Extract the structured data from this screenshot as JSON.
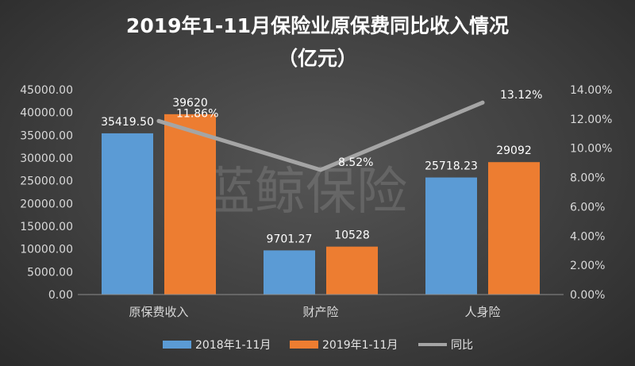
{
  "chart_data": {
    "type": "bar",
    "title_line1": "2019年1-11月保险业原保费同比收入情况",
    "title_line2": "（亿元）",
    "watermark": "蓝鲸保险",
    "categories": [
      "原保费收入",
      "财产险",
      "人身险"
    ],
    "series": [
      {
        "name": "2018年1-11月",
        "type": "bar",
        "color": "#5b9bd5",
        "values": [
          35419.5,
          9701.27,
          25718.23
        ],
        "labels": [
          "35419.50",
          "9701.27",
          "25718.23"
        ]
      },
      {
        "name": "2019年1-11月",
        "type": "bar",
        "color": "#ed7d31",
        "values": [
          39620,
          10528,
          29092
        ],
        "labels": [
          "39620",
          "10528",
          "29092"
        ]
      },
      {
        "name": "同比",
        "type": "line",
        "axis": "right",
        "color": "#a5a5a5",
        "values": [
          11.86,
          8.52,
          13.12
        ],
        "labels": [
          "11.86%",
          "8.52%",
          "13.12%"
        ]
      }
    ],
    "y_left": {
      "min": 0,
      "max": 45000,
      "step": 5000,
      "tick_labels": [
        "0.00",
        "5000.00",
        "10000.00",
        "15000.00",
        "20000.00",
        "25000.00",
        "30000.00",
        "35000.00",
        "40000.00",
        "45000.00"
      ]
    },
    "y_right": {
      "min": 0,
      "max": 14,
      "step": 2,
      "tick_labels": [
        "0.00%",
        "2.00%",
        "4.00%",
        "6.00%",
        "8.00%",
        "10.00%",
        "12.00%",
        "14.00%"
      ]
    },
    "grid": false,
    "legend": "bottom"
  }
}
